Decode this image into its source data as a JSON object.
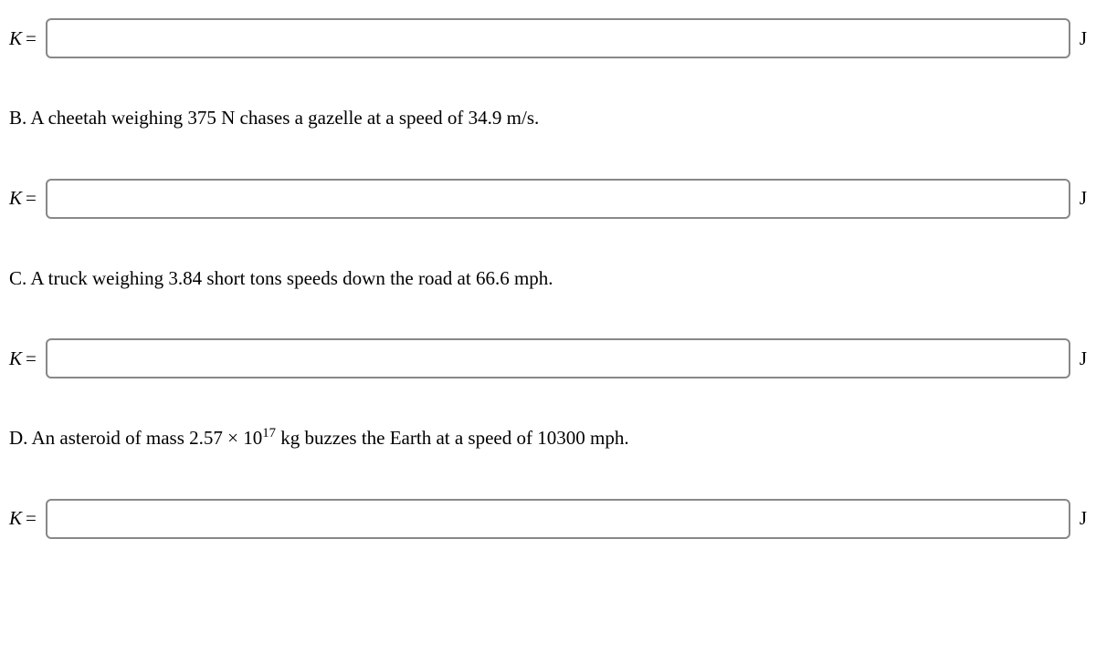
{
  "input_label": "K",
  "equals": "=",
  "unit": "J",
  "questions": {
    "b": {
      "prefix": "B. ",
      "text": "A cheetah weighing 375 N chases a gazelle at a speed of 34.9 m/s."
    },
    "c": {
      "prefix": "C. ",
      "text": "A truck weighing 3.84 short tons speeds down the road at 66.6 mph."
    },
    "d": {
      "prefix": "D. ",
      "text_before": "An asteroid of mass 2.57 × 10",
      "exponent": "17",
      "text_after": " kg buzzes the Earth at a speed of 10300 mph."
    }
  },
  "styling": {
    "background_color": "#ffffff",
    "text_color": "#000000",
    "input_border_color": "#888888",
    "input_border_radius": 6,
    "input_height": 44,
    "font_size": 21,
    "font_family": "Times New Roman"
  }
}
